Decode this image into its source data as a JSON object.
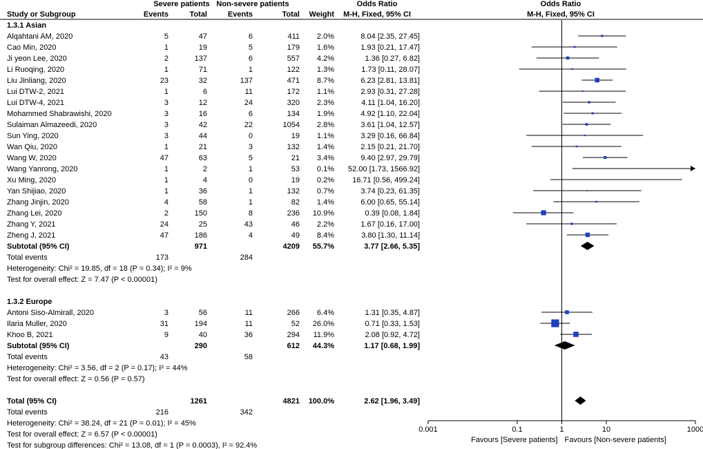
{
  "chart_data": {
    "type": "forest",
    "headers": {
      "severe_group": "Severe patients",
      "nonsevere_group": "Non-severe patients",
      "odds_ratio": "Odds Ratio",
      "study": "Study or Subgroup",
      "events": "Events",
      "total": "Total",
      "weight": "Weight",
      "method_table": "M-H, Fixed, 95% CI",
      "method_plot": "M-H, Fixed, 95% CI"
    },
    "subgroups": [
      {
        "name": "1.3.1 Asian",
        "studies": [
          {
            "study": "Alqahtani AM, 2020",
            "e1": "5",
            "t1": "47",
            "e2": "6",
            "t2": "411",
            "weight": "2.0%",
            "ci": "8.04 [2.35, 27.45]",
            "or": 8.04,
            "lo": 2.35,
            "hi": 27.45,
            "w": 2.0
          },
          {
            "study": "Cao Min, 2020",
            "e1": "1",
            "t1": "19",
            "e2": "5",
            "t2": "179",
            "weight": "1.6%",
            "ci": "1.93 [0.21, 17.47]",
            "or": 1.93,
            "lo": 0.21,
            "hi": 17.47,
            "w": 1.6
          },
          {
            "study": "Ji yeon Lee, 2020",
            "e1": "2",
            "t1": "137",
            "e2": "6",
            "t2": "557",
            "weight": "4.2%",
            "ci": "1.36 [0.27, 6.82]",
            "or": 1.36,
            "lo": 0.27,
            "hi": 6.82,
            "w": 4.2
          },
          {
            "study": "Li Ruoqing, 2020",
            "e1": "1",
            "t1": "71",
            "e2": "1",
            "t2": "122",
            "weight": "1.3%",
            "ci": "1.73 [0.11, 28.07]",
            "or": 1.73,
            "lo": 0.11,
            "hi": 28.07,
            "w": 1.3
          },
          {
            "study": "Liu Jinliang, 2020",
            "e1": "23",
            "t1": "32",
            "e2": "137",
            "t2": "471",
            "weight": "8.7%",
            "ci": "6.23 [2.81, 13.81]",
            "or": 6.23,
            "lo": 2.81,
            "hi": 13.81,
            "w": 8.7
          },
          {
            "study": "Lui DTW-2, 2021",
            "e1": "1",
            "t1": "6",
            "e2": "11",
            "t2": "172",
            "weight": "1.1%",
            "ci": "2.93 [0.31, 27.28]",
            "or": 2.93,
            "lo": 0.31,
            "hi": 27.28,
            "w": 1.1
          },
          {
            "study": "Lui DTW-4, 2021",
            "e1": "3",
            "t1": "12",
            "e2": "24",
            "t2": "320",
            "weight": "2.3%",
            "ci": "4.11 [1.04, 16.20]",
            "or": 4.11,
            "lo": 1.04,
            "hi": 16.2,
            "w": 2.3
          },
          {
            "study": "Mohammed Shabrawishi, 2020",
            "e1": "3",
            "t1": "16",
            "e2": "6",
            "t2": "134",
            "weight": "1.9%",
            "ci": "4.92 [1.10, 22.04]",
            "or": 4.92,
            "lo": 1.1,
            "hi": 22.04,
            "w": 1.9
          },
          {
            "study": "Sulaiman Almazeedi, 2020",
            "e1": "3",
            "t1": "42",
            "e2": "22",
            "t2": "1054",
            "weight": "2.8%",
            "ci": "3.61 [1.04, 12.57]",
            "or": 3.61,
            "lo": 1.04,
            "hi": 12.57,
            "w": 2.8
          },
          {
            "study": "Sun Ying, 2020",
            "e1": "3",
            "t1": "44",
            "e2": "0",
            "t2": "19",
            "weight": "1.1%",
            "ci": "3.29 [0.16, 66.84]",
            "or": 3.29,
            "lo": 0.16,
            "hi": 66.84,
            "w": 1.1
          },
          {
            "study": "Wan Qiu, 2020",
            "e1": "1",
            "t1": "21",
            "e2": "3",
            "t2": "132",
            "weight": "1.4%",
            "ci": "2.15 [0.21, 21.70]",
            "or": 2.15,
            "lo": 0.21,
            "hi": 21.7,
            "w": 1.4
          },
          {
            "study": "Wang W, 2020",
            "e1": "47",
            "t1": "63",
            "e2": "5",
            "t2": "21",
            "weight": "3.4%",
            "ci": "9.40 [2.97, 29.79]",
            "or": 9.4,
            "lo": 2.97,
            "hi": 29.79,
            "w": 3.4
          },
          {
            "study": "Wang Yanrong, 2020",
            "e1": "1",
            "t1": "2",
            "e2": "1",
            "t2": "53",
            "weight": "0.1%",
            "ci": "52.00 [1.73, 1566.92]",
            "or": 52.0,
            "lo": 1.73,
            "hi": 1566.92,
            "w": 0.1
          },
          {
            "study": "Xu Ming, 2020",
            "e1": "1",
            "t1": "4",
            "e2": "0",
            "t2": "19",
            "weight": "0.2%",
            "ci": "16.71 [0.56, 499.24]",
            "or": 16.71,
            "lo": 0.56,
            "hi": 499.24,
            "w": 0.2
          },
          {
            "study": "Yan Shijiao, 2020",
            "e1": "1",
            "t1": "36",
            "e2": "1",
            "t2": "132",
            "weight": "0.7%",
            "ci": "3.74 [0.23, 61.35]",
            "or": 3.74,
            "lo": 0.23,
            "hi": 61.35,
            "w": 0.7
          },
          {
            "study": "Zhang Jinjin, 2020",
            "e1": "4",
            "t1": "58",
            "e2": "1",
            "t2": "82",
            "weight": "1.4%",
            "ci": "6.00 [0.65, 55.14]",
            "or": 6.0,
            "lo": 0.65,
            "hi": 55.14,
            "w": 1.4
          },
          {
            "study": "Zhang Lei, 2020",
            "e1": "2",
            "t1": "150",
            "e2": "8",
            "t2": "236",
            "weight": "10.9%",
            "ci": "0.39 [0.08, 1.84]",
            "or": 0.39,
            "lo": 0.08,
            "hi": 1.84,
            "w": 10.9
          },
          {
            "study": "Zhang Y, 2021",
            "e1": "24",
            "t1": "25",
            "e2": "43",
            "t2": "46",
            "weight": "2.2%",
            "ci": "1.67 [0.16, 17.00]",
            "or": 1.67,
            "lo": 0.16,
            "hi": 17.0,
            "w": 2.2
          },
          {
            "study": "Zheng J, 2021",
            "e1": "47",
            "t1": "186",
            "e2": "4",
            "t2": "49",
            "weight": "8.4%",
            "ci": "3.80 [1.30, 11.14]",
            "or": 3.8,
            "lo": 1.3,
            "hi": 11.14,
            "w": 8.4
          }
        ],
        "subtotal": {
          "label": "Subtotal (95% CI)",
          "t1": "971",
          "t2": "4209",
          "weight": "55.7%",
          "ci": "3.77 [2.66, 5.35]",
          "or": 3.77,
          "lo": 2.66,
          "hi": 5.35
        },
        "total_events": {
          "label": "Total events",
          "e1": "173",
          "e2": "284"
        },
        "heterogeneity": "Heterogeneity: Chi² = 19.85, df = 18 (P = 0.34); I² = 9%",
        "overall": "Test for overall effect: Z = 7.47 (P < 0.00001)"
      },
      {
        "name": "1.3.2 Europe",
        "studies": [
          {
            "study": "Antoni Siso-Almirall, 2020",
            "e1": "3",
            "t1": "56",
            "e2": "11",
            "t2": "266",
            "weight": "6.4%",
            "ci": "1.31 [0.35, 4.87]",
            "or": 1.31,
            "lo": 0.35,
            "hi": 4.87,
            "w": 6.4
          },
          {
            "study": "Ilaria Muller, 2020",
            "e1": "31",
            "t1": "194",
            "e2": "11",
            "t2": "52",
            "weight": "26.0%",
            "ci": "0.71 [0.33, 1.53]",
            "or": 0.71,
            "lo": 0.33,
            "hi": 1.53,
            "w": 26.0
          },
          {
            "study": "Khoo B, 2021",
            "e1": "9",
            "t1": "40",
            "e2": "36",
            "t2": "294",
            "weight": "11.9%",
            "ci": "2.08 [0.92, 4.72]",
            "or": 2.08,
            "lo": 0.92,
            "hi": 4.72,
            "w": 11.9
          }
        ],
        "subtotal": {
          "label": "Subtotal (95% CI)",
          "t1": "290",
          "t2": "612",
          "weight": "44.3%",
          "ci": "1.17 [0.68, 1.99]",
          "or": 1.17,
          "lo": 0.68,
          "hi": 1.99
        },
        "total_events": {
          "label": "Total events",
          "e1": "43",
          "e2": "58"
        },
        "heterogeneity": "Heterogeneity: Chi² = 3.56, df = 2 (P = 0.17); I² = 44%",
        "overall": "Test for overall effect: Z = 0.56 (P = 0.57)"
      }
    ],
    "total": {
      "label": "Total (95% CI)",
      "t1": "1261",
      "t2": "4821",
      "weight": "100.0%",
      "ci": "2.62 [1.96, 3.49]",
      "or": 2.62,
      "lo": 1.96,
      "hi": 3.49
    },
    "total_events": {
      "label": "Total events",
      "e1": "216",
      "e2": "342"
    },
    "heterogeneity": "Heterogeneity: Chi² = 38.24, df = 21 (P = 0.01); I² = 45%",
    "overall": "Test for overall effect: Z = 6.57 (P < 0.00001)",
    "subgroup_diff": "Test for subgroup differences: Chi² = 13.08, df = 1 (P = 0.0003), I² = 92.4%",
    "axis": {
      "scale": "log",
      "xlim": [
        0.001,
        1000
      ],
      "ticks": [
        0.001,
        0.1,
        1,
        10,
        1000
      ],
      "tick_labels": [
        "0.001",
        "0.1",
        "1",
        "10",
        "1000"
      ],
      "favours_left": "Favours [Severe patients]",
      "favours_right": "Favours [Non-severe patients]"
    },
    "colors": {
      "marker": "#1f3fbf",
      "line": "#000000",
      "diamond": "#000000"
    }
  }
}
